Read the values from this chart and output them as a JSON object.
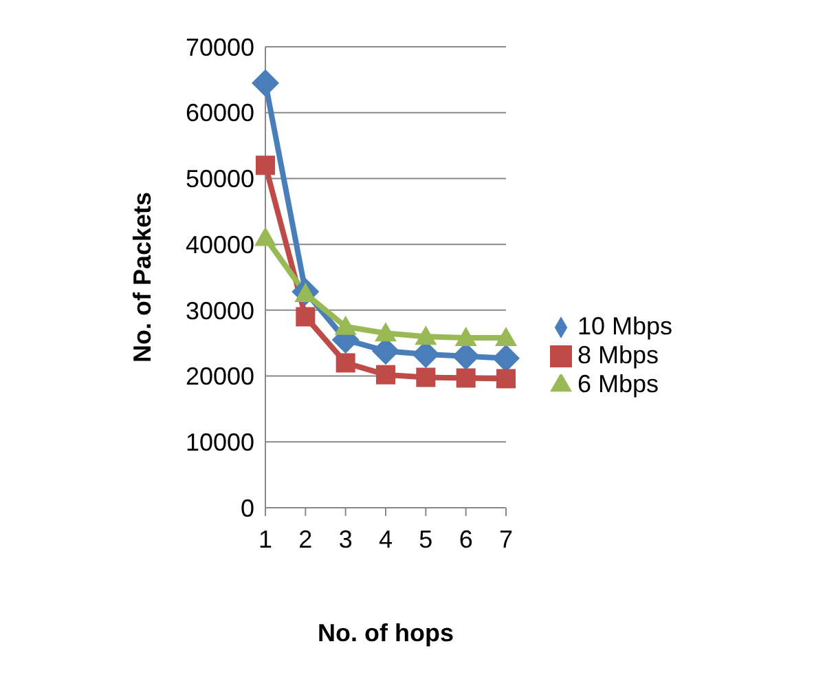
{
  "chart_data": {
    "type": "line",
    "xlabel": "No. of hops",
    "ylabel": "No. of Packets",
    "categories": [
      "1",
      "2",
      "3",
      "4",
      "5",
      "6",
      "7"
    ],
    "series": [
      {
        "name": "10 Mbps",
        "color": "#4a7ebb",
        "marker": "diamond",
        "values": [
          64500,
          32800,
          25500,
          23800,
          23300,
          23000,
          22700
        ]
      },
      {
        "name": "8 Mbps",
        "color": "#be4b48",
        "marker": "square",
        "values": [
          52000,
          29000,
          22000,
          20200,
          19800,
          19700,
          19600
        ]
      },
      {
        "name": "6 Mbps",
        "color": "#98b954",
        "marker": "triangle",
        "values": [
          41000,
          32500,
          27500,
          26500,
          26000,
          25800,
          25800
        ]
      }
    ],
    "ylim": [
      0,
      70000
    ],
    "yticks": [
      0,
      10000,
      20000,
      30000,
      40000,
      50000,
      60000,
      70000
    ],
    "grid": "y",
    "legend": "right"
  }
}
